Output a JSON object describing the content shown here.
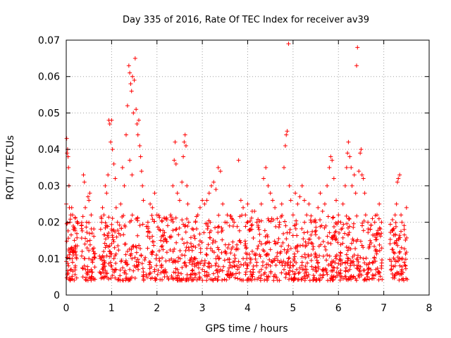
{
  "chart_data": {
    "type": "scatter",
    "title": "Day 335 of 2016, Rate Of TEC Index for receiver av39",
    "xlabel": "GPS time / hours",
    "ylabel": "ROTI / TECUs",
    "xlim": [
      0,
      8
    ],
    "ylim": [
      0,
      0.07
    ],
    "xticks": [
      "0",
      "1",
      "2",
      "3",
      "4",
      "5",
      "6",
      "7",
      "8"
    ],
    "yticks": [
      "0",
      "0.01",
      "0.02",
      "0.03",
      "0.04",
      "0.05",
      "0.06",
      "0.07"
    ],
    "grid": true,
    "marker": "+",
    "color": "#ff0000",
    "series": [
      {
        "name": "ROTI",
        "points": [
          [
            0.0,
            0.025
          ],
          [
            0.01,
            0.043
          ],
          [
            0.02,
            0.039
          ],
          [
            0.03,
            0.04
          ],
          [
            0.04,
            0.038
          ],
          [
            0.05,
            0.035
          ],
          [
            0.06,
            0.03
          ],
          [
            0.07,
            0.024
          ],
          [
            0.08,
            0.02
          ],
          [
            0.1,
            0.022
          ],
          [
            0.12,
            0.024
          ],
          [
            0.14,
            0.022
          ],
          [
            0.16,
            0.018
          ],
          [
            0.18,
            0.015
          ],
          [
            0.2,
            0.012
          ],
          [
            0.22,
            0.011
          ],
          [
            0.03,
            0.006
          ],
          [
            0.05,
            0.008
          ],
          [
            0.08,
            0.01
          ],
          [
            0.11,
            0.007
          ],
          [
            0.14,
            0.009
          ],
          [
            0.17,
            0.012
          ],
          [
            0.2,
            0.008
          ],
          [
            0.23,
            0.01
          ],
          [
            0.35,
            0.012
          ],
          [
            0.38,
            0.033
          ],
          [
            0.4,
            0.031
          ],
          [
            0.42,
            0.024
          ],
          [
            0.45,
            0.02
          ],
          [
            0.48,
            0.027
          ],
          [
            0.5,
            0.026
          ],
          [
            0.52,
            0.028
          ],
          [
            0.55,
            0.022
          ],
          [
            0.57,
            0.017
          ],
          [
            0.6,
            0.012
          ],
          [
            0.4,
            0.008
          ],
          [
            0.45,
            0.006
          ],
          [
            0.5,
            0.01
          ],
          [
            0.55,
            0.007
          ],
          [
            0.58,
            0.009
          ],
          [
            0.75,
            0.01
          ],
          [
            0.78,
            0.02
          ],
          [
            0.8,
            0.024
          ],
          [
            0.83,
            0.022
          ],
          [
            0.86,
            0.03
          ],
          [
            0.89,
            0.028
          ],
          [
            0.92,
            0.033
          ],
          [
            0.94,
            0.048
          ],
          [
            0.96,
            0.047
          ],
          [
            0.98,
            0.042
          ],
          [
            1.0,
            0.048
          ],
          [
            1.02,
            0.04
          ],
          [
            1.05,
            0.036
          ],
          [
            1.08,
            0.032
          ],
          [
            1.1,
            0.024
          ],
          [
            1.13,
            0.02
          ],
          [
            0.8,
            0.007
          ],
          [
            0.85,
            0.009
          ],
          [
            0.9,
            0.006
          ],
          [
            0.95,
            0.012
          ],
          [
            1.0,
            0.008
          ],
          [
            1.05,
            0.01
          ],
          [
            1.1,
            0.007
          ],
          [
            1.2,
            0.025
          ],
          [
            1.24,
            0.035
          ],
          [
            1.28,
            0.03
          ],
          [
            1.32,
            0.044
          ],
          [
            1.35,
            0.052
          ],
          [
            1.38,
            0.063
          ],
          [
            1.4,
            0.061
          ],
          [
            1.42,
            0.058
          ],
          [
            1.44,
            0.056
          ],
          [
            1.46,
            0.06
          ],
          [
            1.48,
            0.05
          ],
          [
            1.5,
            0.059
          ],
          [
            1.52,
            0.065
          ],
          [
            1.54,
            0.051
          ],
          [
            1.56,
            0.047
          ],
          [
            1.58,
            0.044
          ],
          [
            1.6,
            0.048
          ],
          [
            1.62,
            0.041
          ],
          [
            1.64,
            0.038
          ],
          [
            1.66,
            0.034
          ],
          [
            1.68,
            0.03
          ],
          [
            1.7,
            0.026
          ],
          [
            1.4,
            0.037
          ],
          [
            1.45,
            0.033
          ],
          [
            1.3,
            0.009
          ],
          [
            1.35,
            0.012
          ],
          [
            1.4,
            0.007
          ],
          [
            1.45,
            0.01
          ],
          [
            1.5,
            0.008
          ],
          [
            1.55,
            0.013
          ],
          [
            1.6,
            0.009
          ],
          [
            1.65,
            0.011
          ],
          [
            1.8,
            0.02
          ],
          [
            1.85,
            0.025
          ],
          [
            1.9,
            0.024
          ],
          [
            1.95,
            0.028
          ],
          [
            2.0,
            0.022
          ],
          [
            2.05,
            0.018
          ],
          [
            2.1,
            0.016
          ],
          [
            1.85,
            0.009
          ],
          [
            1.95,
            0.007
          ],
          [
            2.05,
            0.01
          ],
          [
            2.1,
            0.008
          ],
          [
            2.3,
            0.022
          ],
          [
            2.35,
            0.03
          ],
          [
            2.38,
            0.037
          ],
          [
            2.4,
            0.042
          ],
          [
            2.42,
            0.036
          ],
          [
            2.45,
            0.028
          ],
          [
            2.5,
            0.026
          ],
          [
            2.55,
            0.031
          ],
          [
            2.58,
            0.038
          ],
          [
            2.6,
            0.042
          ],
          [
            2.62,
            0.044
          ],
          [
            2.64,
            0.041
          ],
          [
            2.66,
            0.03
          ],
          [
            2.68,
            0.025
          ],
          [
            2.7,
            0.02
          ],
          [
            2.35,
            0.009
          ],
          [
            2.45,
            0.007
          ],
          [
            2.55,
            0.011
          ],
          [
            2.65,
            0.008
          ],
          [
            2.8,
            0.018
          ],
          [
            2.85,
            0.02
          ],
          [
            2.9,
            0.022
          ],
          [
            2.95,
            0.024
          ],
          [
            3.0,
            0.026
          ],
          [
            3.05,
            0.025
          ],
          [
            3.1,
            0.026
          ],
          [
            3.15,
            0.028
          ],
          [
            3.2,
            0.03
          ],
          [
            3.25,
            0.031
          ],
          [
            3.3,
            0.029
          ],
          [
            3.35,
            0.035
          ],
          [
            3.4,
            0.034
          ],
          [
            3.45,
            0.025
          ],
          [
            3.5,
            0.02
          ],
          [
            3.55,
            0.022
          ],
          [
            3.6,
            0.019
          ],
          [
            3.65,
            0.021
          ],
          [
            3.7,
            0.02
          ],
          [
            2.9,
            0.009
          ],
          [
            3.0,
            0.007
          ],
          [
            3.1,
            0.011
          ],
          [
            3.2,
            0.008
          ],
          [
            3.3,
            0.01
          ],
          [
            3.4,
            0.007
          ],
          [
            3.5,
            0.012
          ],
          [
            3.6,
            0.009
          ],
          [
            3.7,
            0.008
          ],
          [
            3.8,
            0.037
          ],
          [
            3.85,
            0.026
          ],
          [
            3.9,
            0.024
          ],
          [
            3.95,
            0.022
          ],
          [
            4.0,
            0.025
          ],
          [
            4.05,
            0.018
          ],
          [
            4.1,
            0.023
          ],
          [
            4.15,
            0.023
          ],
          [
            4.2,
            0.02
          ],
          [
            4.25,
            0.018
          ],
          [
            4.3,
            0.025
          ],
          [
            4.35,
            0.032
          ],
          [
            4.4,
            0.035
          ],
          [
            4.45,
            0.03
          ],
          [
            4.5,
            0.028
          ],
          [
            4.55,
            0.026
          ],
          [
            4.6,
            0.024
          ],
          [
            4.65,
            0.021
          ],
          [
            4.7,
            0.02
          ],
          [
            3.9,
            0.01
          ],
          [
            4.0,
            0.008
          ],
          [
            4.1,
            0.012
          ],
          [
            4.2,
            0.009
          ],
          [
            4.3,
            0.007
          ],
          [
            4.4,
            0.011
          ],
          [
            4.5,
            0.008
          ],
          [
            4.6,
            0.01
          ],
          [
            4.7,
            0.009
          ],
          [
            4.75,
            0.025
          ],
          [
            4.8,
            0.035
          ],
          [
            4.83,
            0.041
          ],
          [
            4.85,
            0.044
          ],
          [
            4.87,
            0.045
          ],
          [
            4.9,
            0.069
          ],
          [
            4.92,
            0.03
          ],
          [
            4.95,
            0.026
          ],
          [
            5.0,
            0.022
          ],
          [
            5.05,
            0.028
          ],
          [
            5.1,
            0.025
          ],
          [
            5.15,
            0.027
          ],
          [
            5.2,
            0.03
          ],
          [
            5.25,
            0.026
          ],
          [
            5.3,
            0.022
          ],
          [
            5.35,
            0.025
          ],
          [
            5.4,
            0.02
          ],
          [
            4.8,
            0.007
          ],
          [
            4.9,
            0.01
          ],
          [
            5.0,
            0.008
          ],
          [
            5.1,
            0.012
          ],
          [
            5.2,
            0.009
          ],
          [
            5.3,
            0.007
          ],
          [
            5.4,
            0.011
          ],
          [
            5.5,
            0.02
          ],
          [
            5.55,
            0.024
          ],
          [
            5.6,
            0.028
          ],
          [
            5.65,
            0.023
          ],
          [
            5.7,
            0.025
          ],
          [
            5.75,
            0.03
          ],
          [
            5.8,
            0.035
          ],
          [
            5.83,
            0.038
          ],
          [
            5.86,
            0.037
          ],
          [
            5.9,
            0.032
          ],
          [
            5.95,
            0.026
          ],
          [
            6.0,
            0.022
          ],
          [
            6.05,
            0.02
          ],
          [
            5.55,
            0.009
          ],
          [
            5.65,
            0.007
          ],
          [
            5.75,
            0.011
          ],
          [
            5.85,
            0.008
          ],
          [
            5.95,
            0.01
          ],
          [
            6.05,
            0.006
          ],
          [
            6.1,
            0.025
          ],
          [
            6.15,
            0.03
          ],
          [
            6.18,
            0.035
          ],
          [
            6.2,
            0.039
          ],
          [
            6.22,
            0.042
          ],
          [
            6.25,
            0.038
          ],
          [
            6.28,
            0.035
          ],
          [
            6.3,
            0.03
          ],
          [
            6.35,
            0.033
          ],
          [
            6.38,
            0.028
          ],
          [
            6.4,
            0.063
          ],
          [
            6.42,
            0.068
          ],
          [
            6.45,
            0.034
          ],
          [
            6.48,
            0.039
          ],
          [
            6.5,
            0.04
          ],
          [
            6.52,
            0.033
          ],
          [
            6.55,
            0.032
          ],
          [
            6.58,
            0.028
          ],
          [
            6.6,
            0.022
          ],
          [
            6.65,
            0.02
          ],
          [
            6.7,
            0.018
          ],
          [
            6.75,
            0.021
          ],
          [
            6.8,
            0.02
          ],
          [
            6.85,
            0.022
          ],
          [
            6.9,
            0.025
          ],
          [
            6.95,
            0.02
          ],
          [
            6.15,
            0.009
          ],
          [
            6.25,
            0.007
          ],
          [
            6.35,
            0.011
          ],
          [
            6.45,
            0.008
          ],
          [
            6.55,
            0.01
          ],
          [
            6.65,
            0.007
          ],
          [
            6.75,
            0.009
          ],
          [
            6.85,
            0.012
          ],
          [
            6.95,
            0.008
          ],
          [
            7.2,
            0.018
          ],
          [
            7.25,
            0.022
          ],
          [
            7.28,
            0.025
          ],
          [
            7.3,
            0.031
          ],
          [
            7.32,
            0.032
          ],
          [
            7.35,
            0.033
          ],
          [
            7.38,
            0.022
          ],
          [
            7.4,
            0.02
          ],
          [
            7.45,
            0.018
          ],
          [
            7.5,
            0.024
          ],
          [
            7.25,
            0.008
          ],
          [
            7.3,
            0.006
          ],
          [
            7.35,
            0.01
          ],
          [
            7.4,
            0.007
          ],
          [
            7.45,
            0.009
          ],
          [
            7.48,
            0.008
          ]
        ]
      }
    ]
  }
}
